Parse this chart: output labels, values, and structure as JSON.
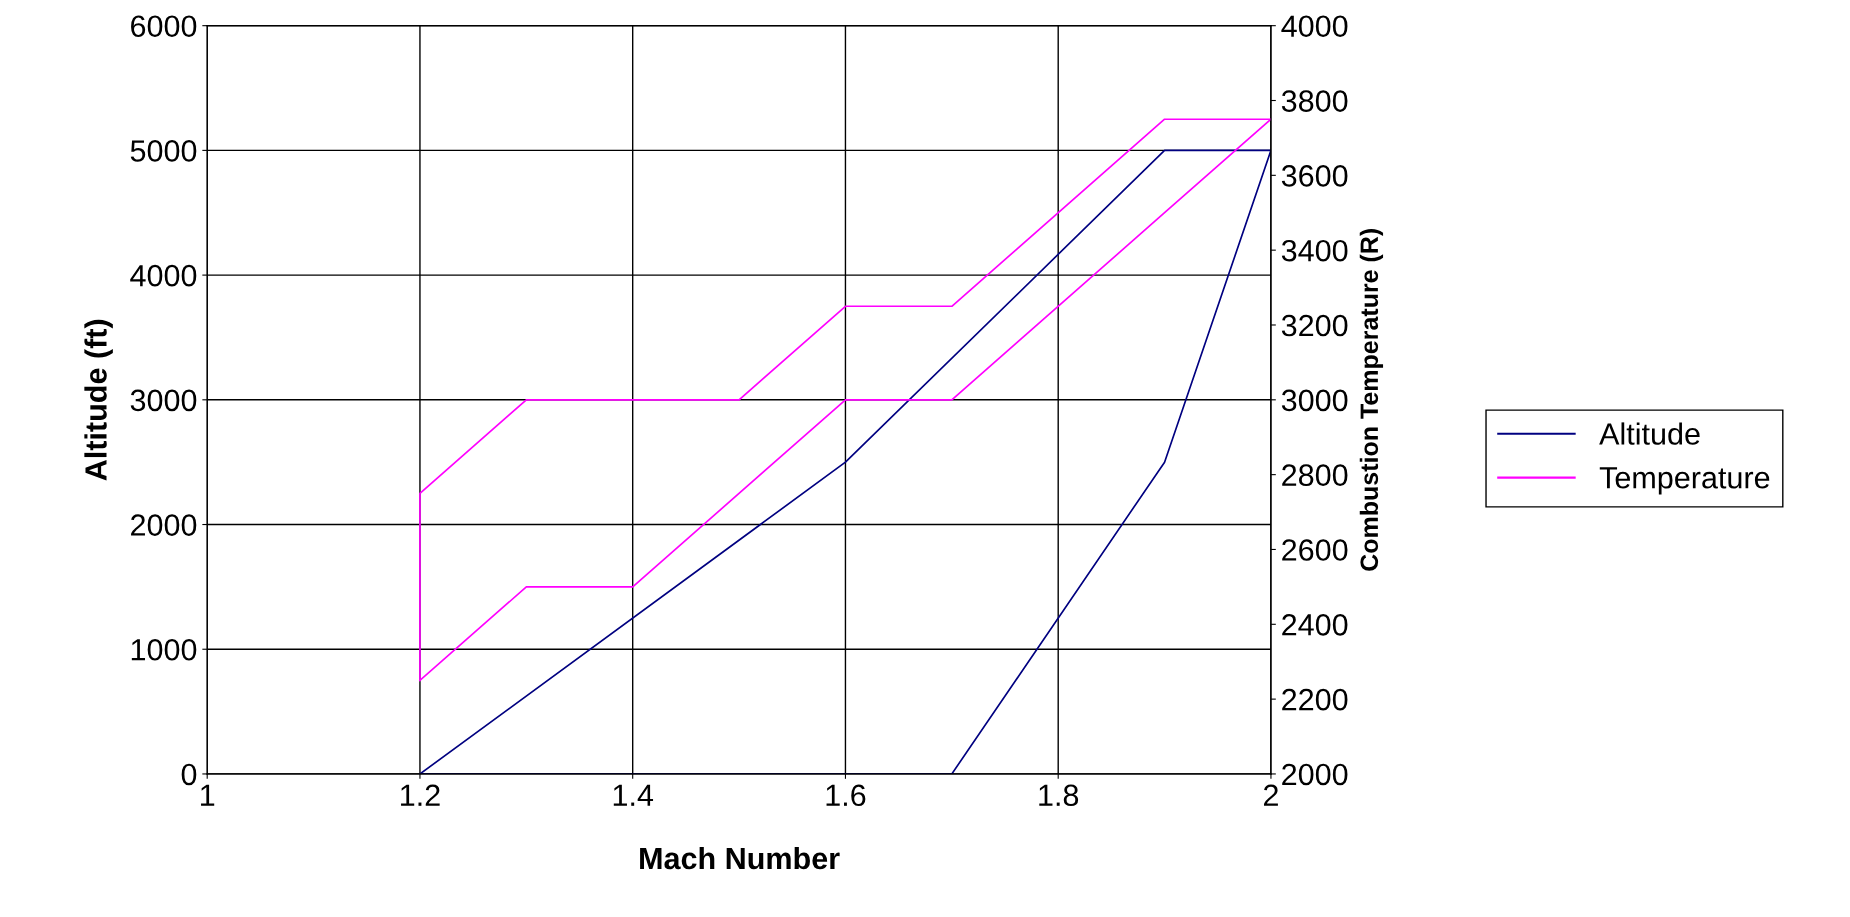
{
  "chart_data": {
    "type": "line",
    "xlabel": "Mach Number",
    "ylabel": "Altitude (ft)",
    "y2label": "Combustion Temperature (R)",
    "xlim": [
      1,
      2
    ],
    "xticks": [
      1,
      1.2,
      1.4,
      1.6,
      1.8,
      2
    ],
    "ylim": [
      0,
      6000
    ],
    "yticks": [
      0,
      1000,
      2000,
      3000,
      4000,
      5000,
      6000
    ],
    "y2lim": [
      2000,
      4000
    ],
    "y2ticks": [
      2000,
      2200,
      2400,
      2600,
      2800,
      3000,
      3200,
      3400,
      3600,
      3800,
      4000
    ],
    "grid": true,
    "legend": "right",
    "marker": "none",
    "line_style": "solid",
    "series": [
      {
        "name": "Altitude",
        "color": "#000080",
        "x": [
          1.2,
          1.6,
          1.9,
          2.0
        ],
        "values": [
          0,
          2500,
          5000,
          5000
        ]
      },
      {
        "color": "#000080",
        "x": [
          1.2,
          1.7,
          1.9,
          2.0
        ],
        "values": [
          0,
          0,
          2500,
          5000
        ]
      },
      {
        "name": "Temperature",
        "color": "#ff00ff",
        "axis": "y2",
        "x": [
          1.2,
          1.3,
          1.4,
          1.6,
          1.7,
          1.9,
          2.0
        ],
        "values": [
          2250,
          2500,
          2500,
          3000,
          3000,
          3500,
          3750
        ]
      },
      {
        "color": "#ff00ff",
        "axis": "y2",
        "x": [
          1.2,
          1.2,
          1.3,
          1.5,
          1.6,
          1.7,
          1.9,
          2.0
        ],
        "values": [
          2250,
          2750,
          3000,
          3000,
          3250,
          3250,
          3750,
          3750
        ]
      }
    ]
  }
}
